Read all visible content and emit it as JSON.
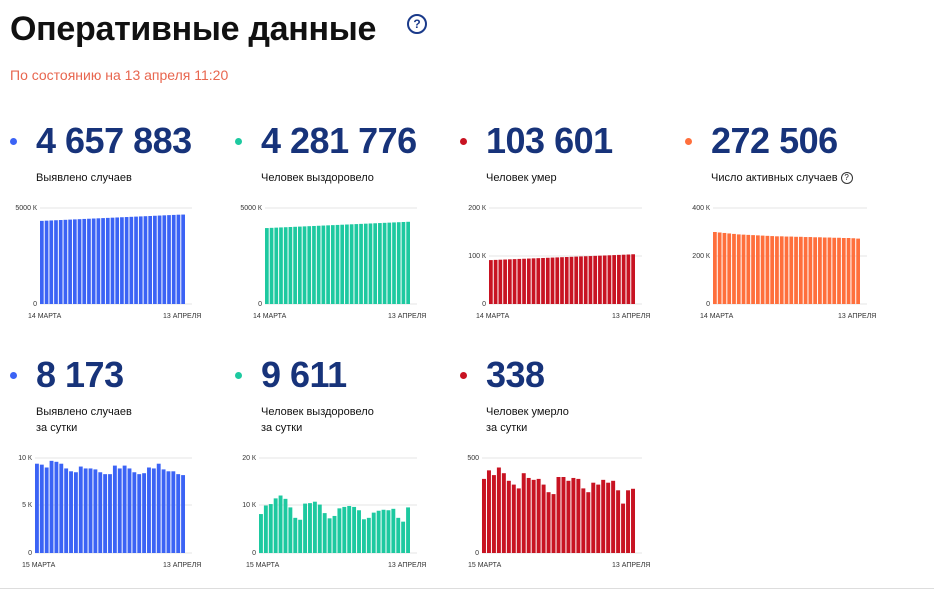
{
  "header": {
    "title": "Оперативные данные",
    "help": "?",
    "subtitle": "По состоянию на 13 апреля 11:20"
  },
  "colors": {
    "blue": "#3b63f5",
    "teal": "#1dc9a0",
    "red": "#c81322",
    "orange": "#ff6f3c",
    "number": "#17337a"
  },
  "cards": [
    {
      "value": "4 657 883",
      "label": "Выявлено случаев",
      "dot_color": "#3b63f5"
    },
    {
      "value": "4 281 776",
      "label": "Человек выздоровело",
      "dot_color": "#1dc9a0"
    },
    {
      "value": "103 601",
      "label": "Человек умер",
      "dot_color": "#c81322"
    },
    {
      "value": "272 506",
      "label": "Число активных случаев",
      "dot_color": "#ff6f3c",
      "help": "?"
    },
    {
      "value": "8 173",
      "label": "Выявлено случаев",
      "label2": "за сутки",
      "dot_color": "#3b63f5"
    },
    {
      "value": "9 611",
      "label": "Человек выздоровело",
      "label2": "за сутки",
      "dot_color": "#1dc9a0"
    },
    {
      "value": "338",
      "label": "Человек умерло",
      "label2": "за сутки",
      "dot_color": "#c81322"
    }
  ],
  "chart_data": [
    {
      "type": "bar",
      "color": "#3b63f5",
      "y_ticks": [
        "5000 К",
        "0"
      ],
      "x_labels": [
        "14 МАРТА",
        "13 АПРЕЛЯ"
      ],
      "ylim": [
        0,
        5000
      ],
      "values": [
        4330,
        4341,
        4352,
        4363,
        4374,
        4385,
        4396,
        4407,
        4418,
        4430,
        4441,
        4452,
        4463,
        4474,
        4485,
        4496,
        4507,
        4518,
        4529,
        4540,
        4551,
        4562,
        4573,
        4584,
        4596,
        4607,
        4618,
        4629,
        4640,
        4651,
        4658
      ]
    },
    {
      "type": "bar",
      "color": "#1dc9a0",
      "y_ticks": [
        "5000 К",
        "0"
      ],
      "x_labels": [
        "14 МАРТА",
        "13 АПРЕЛЯ"
      ],
      "ylim": [
        0,
        5000
      ],
      "values": [
        3955,
        3966,
        3977,
        3988,
        3999,
        4010,
        4021,
        4031,
        4042,
        4053,
        4064,
        4075,
        4086,
        4097,
        4108,
        4118,
        4129,
        4140,
        4151,
        4162,
        4173,
        4184,
        4195,
        4205,
        4216,
        4227,
        4238,
        4249,
        4260,
        4271,
        4282
      ]
    },
    {
      "type": "bar",
      "color": "#c81322",
      "y_ticks": [
        "200 К",
        "100 К",
        "0"
      ],
      "x_labels": [
        "14 МАРТА",
        "13 АПРЕЛЯ"
      ],
      "ylim": [
        0,
        200
      ],
      "values": [
        91.5,
        91.9,
        92.3,
        92.7,
        93.1,
        93.5,
        93.9,
        94.3,
        94.7,
        95.1,
        95.5,
        95.9,
        96.3,
        96.7,
        97.1,
        97.5,
        97.9,
        98.3,
        98.7,
        99.1,
        99.5,
        99.9,
        100.3,
        100.7,
        101.1,
        101.5,
        101.9,
        102.3,
        102.7,
        103.1,
        103.6
      ]
    },
    {
      "type": "bar",
      "color": "#ff6f3c",
      "y_ticks": [
        "400 К",
        "200 К",
        "0"
      ],
      "x_labels": [
        "14 МАРТА",
        "13 АПРЕЛЯ"
      ],
      "ylim": [
        0,
        400
      ],
      "values": [
        300,
        298,
        296,
        294,
        292,
        290,
        289,
        288,
        287,
        286,
        285,
        284,
        283,
        282,
        282,
        281,
        281,
        280,
        280,
        279,
        279,
        278,
        278,
        277,
        277,
        276,
        276,
        275,
        275,
        274,
        272.5
      ]
    },
    {
      "type": "bar",
      "color": "#3b63f5",
      "y_ticks": [
        "10 К",
        "5 К",
        "0"
      ],
      "x_labels": [
        "15 МАРТА",
        "13 АПРЕЛЯ"
      ],
      "ylim": [
        0,
        10
      ],
      "values": [
        9.4,
        9.3,
        9.0,
        9.7,
        9.6,
        9.4,
        8.9,
        8.6,
        8.5,
        9.1,
        8.9,
        8.9,
        8.8,
        8.5,
        8.3,
        8.3,
        9.2,
        8.9,
        9.2,
        8.9,
        8.5,
        8.3,
        8.4,
        9.0,
        8.9,
        9.4,
        8.8,
        8.6,
        8.6,
        8.3,
        8.2
      ]
    },
    {
      "type": "bar",
      "color": "#1dc9a0",
      "y_ticks": [
        "20 К",
        "10 К",
        "0"
      ],
      "x_labels": [
        "15 МАРТА",
        "13 АПРЕЛЯ"
      ],
      "ylim": [
        0,
        20
      ],
      "values": [
        8.2,
        10.0,
        10.3,
        11.5,
        12.1,
        11.4,
        9.6,
        7.4,
        7.0,
        10.4,
        10.5,
        10.8,
        10.2,
        8.4,
        7.3,
        7.8,
        9.4,
        9.7,
        9.9,
        9.7,
        9.0,
        7.1,
        7.4,
        8.5,
        8.9,
        9.1,
        9.0,
        9.3,
        7.4,
        6.6,
        9.6
      ]
    },
    {
      "type": "bar",
      "color": "#c81322",
      "y_ticks": [
        "500",
        "0"
      ],
      "x_labels": [
        "15 МАРТА",
        "13 АПРЕЛЯ"
      ],
      "ylim": [
        0,
        500
      ],
      "values": [
        390,
        435,
        410,
        450,
        420,
        380,
        360,
        340,
        420,
        395,
        385,
        390,
        360,
        320,
        310,
        400,
        400,
        380,
        395,
        390,
        340,
        320,
        370,
        360,
        385,
        370,
        380,
        330,
        260,
        330,
        338
      ]
    }
  ]
}
